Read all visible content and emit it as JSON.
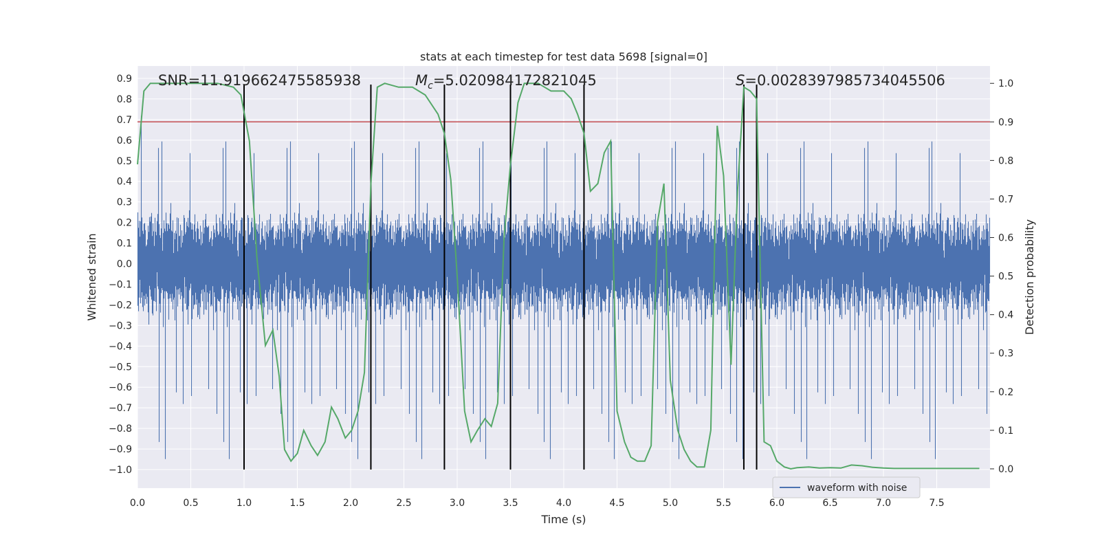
{
  "chart_data": {
    "type": "line",
    "title": "stats at each timestep for test data 5698 [signal=0]",
    "xlabel": "Time (s)",
    "ylabel": "Whitened strain",
    "y2label": "Detection probability",
    "xlim": [
      0.0,
      8.0
    ],
    "ylim": [
      -1.09,
      0.96
    ],
    "y2lim": [
      -0.05,
      1.045
    ],
    "x_ticks": [
      "0.0",
      "0.5",
      "1.0",
      "1.5",
      "2.0",
      "2.5",
      "3.0",
      "3.5",
      "4.0",
      "4.5",
      "5.0",
      "5.5",
      "6.0",
      "6.5",
      "7.0",
      "7.5"
    ],
    "y_ticks": [
      "0.9",
      "0.8",
      "0.7",
      "0.6",
      "0.5",
      "0.4",
      "0.3",
      "0.2",
      "0.1",
      "0.0",
      "−0.1",
      "−0.2",
      "−0.3",
      "−0.4",
      "−0.5",
      "−0.6",
      "−0.7",
      "−0.8",
      "−0.9",
      "−1.0"
    ],
    "y2_ticks": [
      "1.0",
      "0.9",
      "0.8",
      "0.7",
      "0.6",
      "0.5",
      "0.4",
      "0.3",
      "0.2",
      "0.1",
      "0.0"
    ],
    "grid": true,
    "legend_position": "bottom-right",
    "annotations": {
      "snr": "SNR=11.919662475585938",
      "mc": "M",
      "mc_sub": "c",
      "mc_value": "=5.020984172821045",
      "s": "S",
      "s_value": "=0.0028397985734045506"
    },
    "threshold": {
      "value": 0.9,
      "axis": "y2",
      "color": "#c44e52"
    },
    "vertical_lines": [
      1.0,
      2.19,
      2.88,
      3.5,
      4.19,
      5.69,
      5.81
    ],
    "vertical_line_range": [
      -1.0,
      0.87
    ],
    "series": [
      {
        "name": "waveform with noise",
        "axis": "y",
        "color": "#4c72b0",
        "style": "noise",
        "sample_rate": 2048,
        "envelope": 0.32,
        "spike_max": 0.85,
        "spike_min": -1.0
      },
      {
        "axis": "y2",
        "color": "#55a868",
        "x": [
          0.0,
          0.06,
          0.12,
          0.25,
          0.4,
          0.6,
          0.75,
          0.9,
          0.97,
          1.05,
          1.12,
          1.2,
          1.27,
          1.33,
          1.38,
          1.44,
          1.5,
          1.56,
          1.63,
          1.69,
          1.76,
          1.82,
          1.88,
          1.95,
          2.01,
          2.07,
          2.13,
          2.19,
          2.25,
          2.32,
          2.45,
          2.58,
          2.7,
          2.82,
          2.88,
          2.94,
          3.0,
          3.07,
          3.13,
          3.19,
          3.26,
          3.32,
          3.38,
          3.44,
          3.5,
          3.57,
          3.63,
          3.7,
          3.76,
          3.82,
          3.88,
          3.94,
          4.0,
          4.07,
          4.13,
          4.19,
          4.25,
          4.32,
          4.38,
          4.44,
          4.5,
          4.57,
          4.63,
          4.69,
          4.76,
          4.82,
          4.88,
          4.94,
          5.0,
          5.07,
          5.13,
          5.19,
          5.25,
          5.32,
          5.38,
          5.44,
          5.5,
          5.57,
          5.63,
          5.69,
          5.75,
          5.81,
          5.88,
          5.94,
          6.0,
          6.07,
          6.13,
          6.19,
          6.3,
          6.4,
          6.5,
          6.6,
          6.7,
          6.8,
          6.9,
          7.0,
          7.1,
          7.3,
          7.5,
          7.7,
          7.9
        ],
        "values": [
          0.79,
          0.98,
          1.0,
          1.0,
          1.0,
          1.0,
          1.0,
          0.99,
          0.97,
          0.85,
          0.55,
          0.32,
          0.36,
          0.24,
          0.05,
          0.02,
          0.04,
          0.1,
          0.06,
          0.035,
          0.07,
          0.16,
          0.13,
          0.08,
          0.1,
          0.15,
          0.25,
          0.74,
          0.99,
          1.0,
          0.99,
          0.99,
          0.97,
          0.92,
          0.87,
          0.75,
          0.5,
          0.15,
          0.07,
          0.1,
          0.13,
          0.11,
          0.17,
          0.6,
          0.79,
          0.95,
          1.0,
          1.0,
          1.0,
          0.99,
          0.98,
          0.98,
          0.98,
          0.96,
          0.92,
          0.87,
          0.72,
          0.74,
          0.82,
          0.85,
          0.15,
          0.07,
          0.03,
          0.02,
          0.02,
          0.06,
          0.64,
          0.74,
          0.23,
          0.1,
          0.05,
          0.02,
          0.005,
          0.005,
          0.1,
          0.89,
          0.76,
          0.27,
          0.72,
          0.99,
          0.98,
          0.96,
          0.07,
          0.06,
          0.02,
          0.005,
          0.0,
          0.003,
          0.005,
          0.002,
          0.003,
          0.002,
          0.01,
          0.008,
          0.004,
          0.002,
          0.001,
          0.001,
          0.001,
          0.001,
          0.001
        ]
      }
    ]
  }
}
